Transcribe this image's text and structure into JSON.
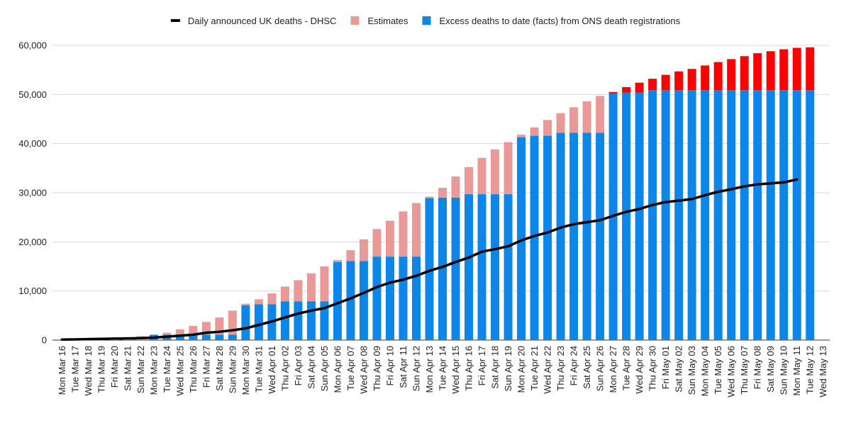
{
  "chart_data": {
    "type": "bar",
    "stacked": true,
    "grid": true,
    "categories": [
      "Mon Mar 16",
      "Tue Mar 17",
      "Wed Mar 18",
      "Thu Mar 19",
      "Fri Mar 20",
      "Sat Mar 21",
      "Sun Mar 22",
      "Mon Mar 23",
      "Tue Mar 24",
      "Wed Mar 25",
      "Thu Mar 26",
      "Fri Mar 27",
      "Sat Mar 28",
      "Sun Mar 29",
      "Mon Mar 30",
      "Tue Mar 31",
      "Wed Apr 01",
      "Thu Apr 02",
      "Fri Apr 03",
      "Sat Apr 04",
      "Sun Apr 05",
      "Mon Apr 06",
      "Tue Apr 07",
      "Wed Apr 08",
      "Thu Apr 09",
      "Fri Apr 10",
      "Sat Apr 11",
      "Sun Apr 12",
      "Mon Apr 13",
      "Tue Apr 14",
      "Wed Apr 15",
      "Thu Apr 16",
      "Fri Apr 17",
      "Sat Apr 18",
      "Sun Apr 19",
      "Mon Apr 20",
      "Tue Apr 21",
      "Wed Apr 22",
      "Thu Apr 23",
      "Fri Apr 24",
      "Sat Apr 25",
      "Sun Apr 26",
      "Mon Apr 27",
      "Tue Apr 28",
      "Wed Apr 29",
      "Thu Apr 30",
      "Fri May 01",
      "Sat May 02",
      "Sun May 03",
      "Mon May 04",
      "Tue May 05",
      "Wed May 06",
      "Thu May 07",
      "Fri May 08",
      "Sat May 09",
      "Sun May 10",
      "Mon May 11",
      "Tue May 12",
      "Wed May 13"
    ],
    "series": [
      {
        "name": "Excess deaths to date (facts) from ONS death registrations",
        "type": "bar",
        "color": "#0d86ea",
        "values": [
          0,
          0,
          0,
          0,
          0,
          0,
          0,
          1100,
          1100,
          1100,
          1100,
          1100,
          1100,
          1100,
          7100,
          7300,
          7300,
          7900,
          7900,
          7900,
          7900,
          15900,
          16100,
          16100,
          17000,
          17000,
          17000,
          17000,
          28900,
          29000,
          29000,
          29700,
          29700,
          29700,
          29700,
          41300,
          41600,
          41600,
          42200,
          42200,
          42200,
          42200,
          50200,
          50400,
          50400,
          50900,
          50900,
          50900,
          50900,
          50900,
          50900,
          50900,
          50900,
          50900,
          50900,
          50900,
          50900,
          50900,
          null
        ]
      },
      {
        "name": "Estimates",
        "type": "bar",
        "color": "#ea9999",
        "values": [
          0,
          100,
          150,
          200,
          300,
          600,
          800,
          0,
          400,
          1100,
          1800,
          2600,
          3500,
          4900,
          300,
          1000,
          2200,
          3000,
          4300,
          5700,
          7100,
          400,
          2200,
          4400,
          5600,
          7300,
          9200,
          10900,
          300,
          2000,
          4300,
          5500,
          7400,
          9100,
          10600,
          500,
          1700,
          3200,
          4000,
          5200,
          6400,
          7500,
          300,
          1100,
          2000,
          2300,
          3100,
          3800,
          4300,
          5000,
          5700,
          6300,
          6900,
          7500,
          7900,
          8300,
          8600,
          8700,
          null
        ],
        "colors": [
          "#ea9999",
          "#ea9999",
          "#ea9999",
          "#ea9999",
          "#ea9999",
          "#ea9999",
          "#ea9999",
          "#ea9999",
          "#ea9999",
          "#ea9999",
          "#ea9999",
          "#ea9999",
          "#ea9999",
          "#ea9999",
          "#ea9999",
          "#ea9999",
          "#ea9999",
          "#ea9999",
          "#ea9999",
          "#ea9999",
          "#ea9999",
          "#ea9999",
          "#ea9999",
          "#ea9999",
          "#ea9999",
          "#ea9999",
          "#ea9999",
          "#ea9999",
          "#ea9999",
          "#ea9999",
          "#ea9999",
          "#ea9999",
          "#ea9999",
          "#ea9999",
          "#ea9999",
          "#ea9999",
          "#ea9999",
          "#ea9999",
          "#ea9999",
          "#ea9999",
          "#ea9999",
          "#ea9999",
          "#ff0000",
          "#ff0000",
          "#ff0000",
          "#ff0000",
          "#ff0000",
          "#ff0000",
          "#ff0000",
          "#ff0000",
          "#ff0000",
          "#ff0000",
          "#ff0000",
          "#ff0000",
          "#ff0000",
          "#ff0000",
          "#ff0000",
          "#ff0000",
          "#ff0000"
        ]
      },
      {
        "name": "Daily announced UK deaths - DHSC",
        "type": "line",
        "color": "#000000",
        "values": [
          100,
          150,
          200,
          250,
          300,
          350,
          400,
          500,
          700,
          900,
          1100,
          1500,
          1700,
          2000,
          2400,
          3100,
          3800,
          4600,
          5400,
          6000,
          6500,
          7500,
          8500,
          9600,
          10800,
          11700,
          12300,
          13100,
          14100,
          14900,
          15900,
          16800,
          18000,
          18500,
          19100,
          20300,
          21200,
          21900,
          22900,
          23600,
          24000,
          24400,
          25300,
          26100,
          26700,
          27500,
          28100,
          28400,
          28700,
          29500,
          30200,
          30700,
          31300,
          31700,
          31900,
          32100,
          32700,
          null,
          null
        ]
      }
    ],
    "ylim": [
      0,
      60000
    ],
    "yticks": [
      0,
      {
        "value": 10000,
        "label": "10,000"
      },
      {
        "value": 20000,
        "label": "20,000"
      },
      {
        "value": 30000,
        "label": "30,000"
      },
      {
        "value": 40000,
        "label": "40,000"
      },
      {
        "value": 50000,
        "label": "50,000"
      },
      {
        "value": 60000,
        "label": "60,000"
      }
    ]
  }
}
